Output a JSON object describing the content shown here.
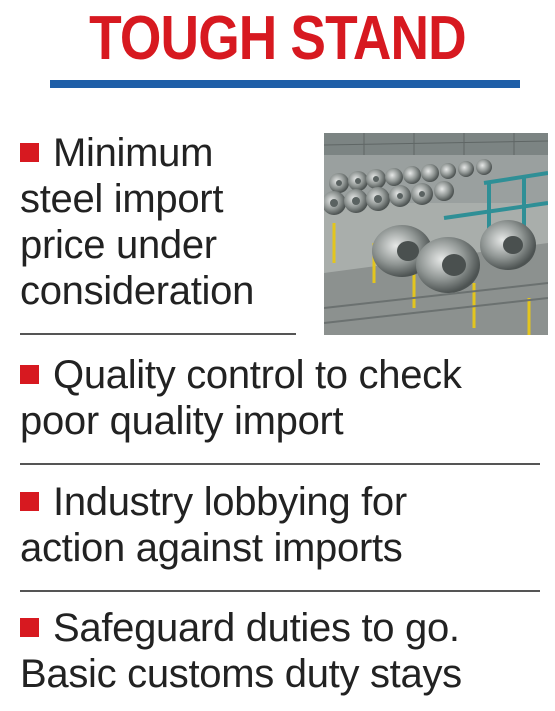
{
  "headline": "TOUGH STAND",
  "items": [
    {
      "lines": [
        "Minimum",
        "steel import",
        "price under",
        "consideration"
      ]
    },
    {
      "lines": [
        "Quality control to check",
        "poor quality import"
      ]
    },
    {
      "lines": [
        "Industry lobbying for",
        "action against imports"
      ]
    },
    {
      "lines": [
        "Safeguard duties to go.",
        "Basic customs duty stays"
      ]
    }
  ],
  "colors": {
    "headline": "#d71920",
    "bullet": "#d71920",
    "rule": "#1f5fa8",
    "text": "#222222"
  },
  "photo": {
    "subject": "steel-coils-warehouse-image"
  }
}
